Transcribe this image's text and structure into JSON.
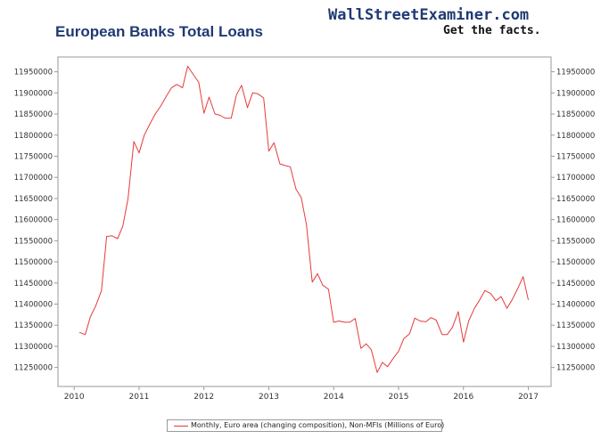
{
  "header": {
    "title": "European Banks Total Loans",
    "brand": "WallStreetExaminer.com",
    "tagline": "Get the facts."
  },
  "colors": {
    "series": "#e83a3a",
    "title": "#1f3a73",
    "axis": "#9a9a9a"
  },
  "chart_data": {
    "type": "line",
    "title": "European Banks Total Loans",
    "xlabel": "",
    "ylabel": "",
    "xlim": [
      2009.75,
      2017.35
    ],
    "ylim": [
      11205000,
      11985000
    ],
    "grid": false,
    "legend_position": "bottom-center",
    "x_ticks": [
      2010,
      2011,
      2012,
      2013,
      2014,
      2015,
      2016,
      2017
    ],
    "x_tick_labels": [
      "2010",
      "2011",
      "2012",
      "2013",
      "2014",
      "2015",
      "2016",
      "2017"
    ],
    "y_ticks": [
      11250000,
      11300000,
      11350000,
      11400000,
      11450000,
      11500000,
      11550000,
      11600000,
      11650000,
      11700000,
      11750000,
      11800000,
      11850000,
      11900000,
      11950000
    ],
    "y_tick_labels": [
      "11250000",
      "11300000",
      "11350000",
      "11400000",
      "11450000",
      "11500000",
      "11550000",
      "11600000",
      "11650000",
      "11700000",
      "11750000",
      "11800000",
      "11850000",
      "11900000",
      "11950000"
    ],
    "series": [
      {
        "name": "Monthly, Euro area (changing composition), Non-MFIs (Millions of Euro)",
        "x": [
          2010.08,
          2010.17,
          2010.25,
          2010.33,
          2010.42,
          2010.5,
          2010.58,
          2010.67,
          2010.75,
          2010.83,
          2010.92,
          2011.0,
          2011.08,
          2011.17,
          2011.25,
          2011.33,
          2011.42,
          2011.5,
          2011.58,
          2011.67,
          2011.75,
          2011.83,
          2011.92,
          2012.0,
          2012.08,
          2012.17,
          2012.25,
          2012.33,
          2012.42,
          2012.5,
          2012.58,
          2012.67,
          2012.75,
          2012.83,
          2012.92,
          2013.0,
          2013.08,
          2013.17,
          2013.25,
          2013.33,
          2013.42,
          2013.5,
          2013.58,
          2013.67,
          2013.75,
          2013.83,
          2013.92,
          2014.0,
          2014.08,
          2014.17,
          2014.25,
          2014.33,
          2014.42,
          2014.5,
          2014.58,
          2014.67,
          2014.75,
          2014.83,
          2014.92,
          2015.0,
          2015.08,
          2015.17,
          2015.25,
          2015.33,
          2015.42,
          2015.5,
          2015.58,
          2015.67,
          2015.75,
          2015.83,
          2015.92,
          2016.0,
          2016.08,
          2016.17,
          2016.25,
          2016.33,
          2016.42,
          2016.5,
          2016.58,
          2016.67,
          2016.75,
          2016.83,
          2016.92,
          2017.0
        ],
        "values": [
          11333000,
          11328000,
          11370000,
          11395000,
          11432000,
          11560000,
          11562000,
          11555000,
          11585000,
          11650000,
          11785000,
          11758000,
          11800000,
          11827000,
          11850000,
          11868000,
          11892000,
          11912000,
          11920000,
          11912000,
          11963000,
          11945000,
          11925000,
          11852000,
          11890000,
          11850000,
          11847000,
          11840000,
          11840000,
          11895000,
          11918000,
          11865000,
          11900000,
          11898000,
          11888000,
          11762000,
          11782000,
          11732000,
          11728000,
          11725000,
          11672000,
          11652000,
          11588000,
          11452000,
          11472000,
          11445000,
          11435000,
          11357000,
          11360000,
          11357000,
          11357000,
          11366000,
          11295000,
          11306000,
          11292000,
          11238000,
          11262000,
          11252000,
          11272000,
          11288000,
          11318000,
          11330000,
          11367000,
          11360000,
          11358000,
          11368000,
          11362000,
          11328000,
          11328000,
          11345000,
          11382000,
          11310000,
          11360000,
          11390000,
          11410000,
          11432000,
          11425000,
          11408000,
          11418000,
          11390000,
          11410000,
          11435000,
          11465000,
          11410000
        ]
      }
    ]
  }
}
